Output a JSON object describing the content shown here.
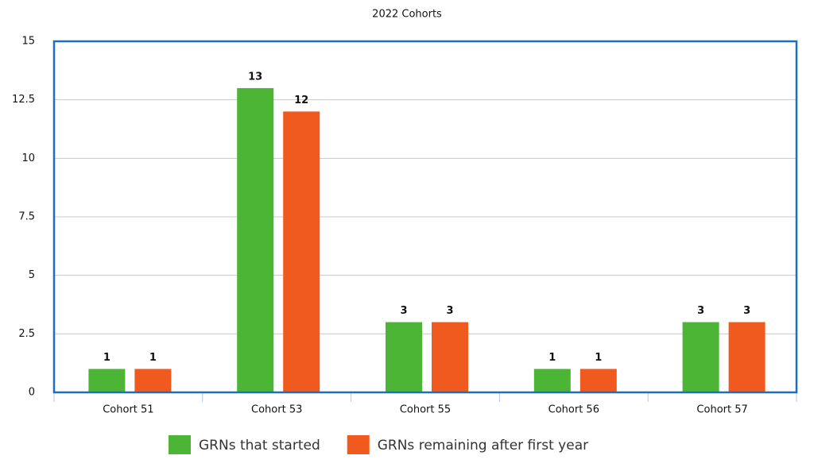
{
  "chart_data": {
    "type": "bar",
    "title": "2022 Cohorts",
    "categories": [
      "Cohort 51",
      "Cohort 53",
      "Cohort 55",
      "Cohort 56",
      "Cohort 57"
    ],
    "series": [
      {
        "name": "GRNs that started",
        "color": "#4db535",
        "values": [
          1,
          13,
          3,
          1,
          3
        ]
      },
      {
        "name": "GRNs remaining after first year",
        "color": "#f05a1e",
        "values": [
          1,
          12,
          3,
          1,
          3
        ]
      }
    ],
    "ylim": [
      0,
      15
    ],
    "yticks": [
      0,
      2.5,
      5,
      7.5,
      10,
      12.5,
      15
    ],
    "grid": true,
    "legend": "bottom"
  }
}
